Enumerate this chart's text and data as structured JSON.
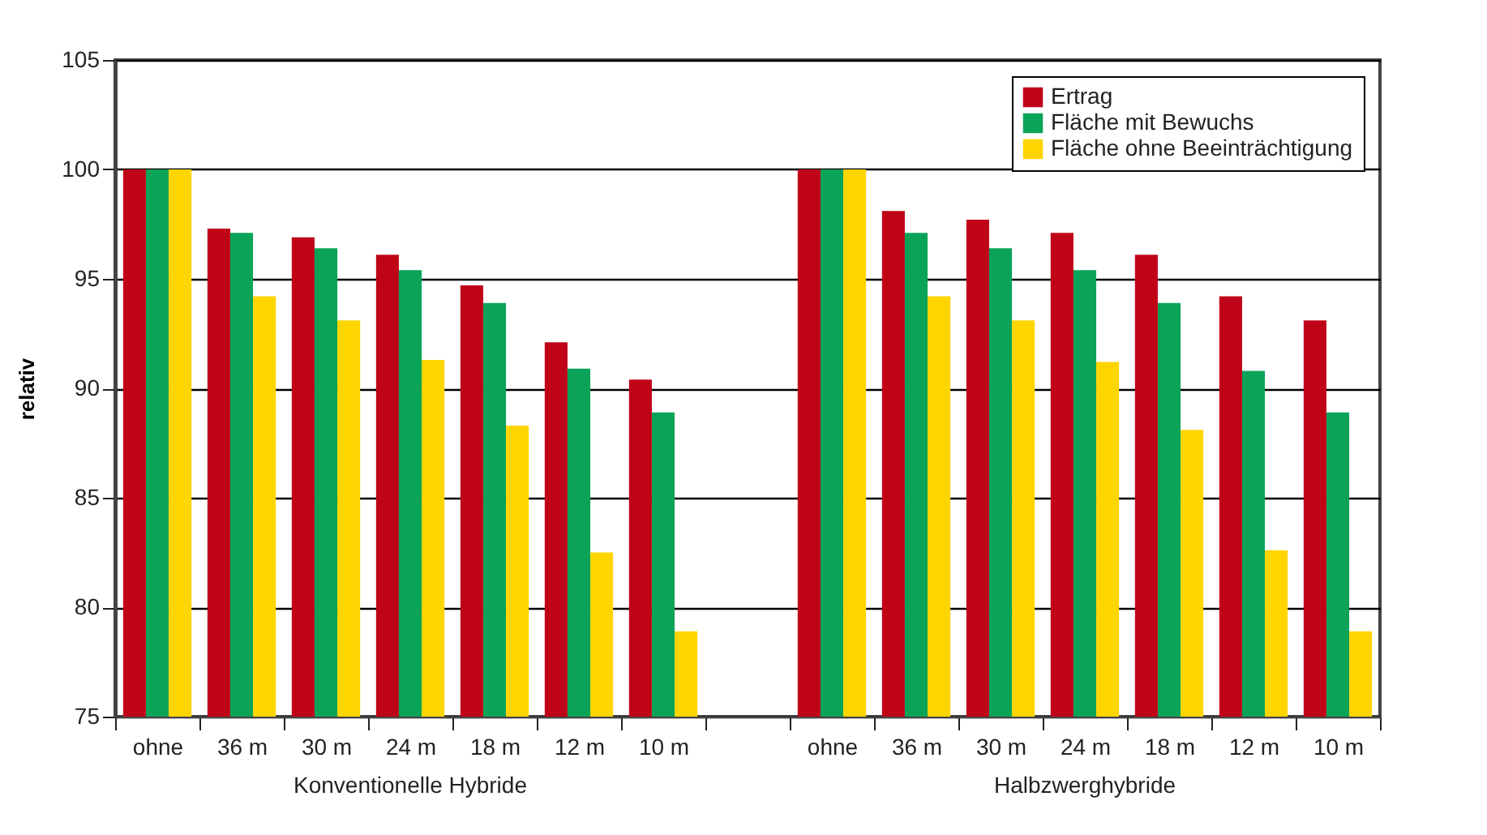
{
  "chart_data": {
    "type": "bar",
    "ylabel": "relativ",
    "categories": [
      "ohne",
      "36 m",
      "30 m",
      "24 m",
      "18 m",
      "12 m",
      "10 m",
      null,
      "ohne",
      "36 m",
      "30 m",
      "24 m",
      "18 m",
      "12 m",
      "10 m"
    ],
    "series": [
      {
        "name": "Ertrag",
        "color": "#c00418",
        "values": [
          100,
          97.3,
          96.9,
          96.1,
          94.7,
          92.1,
          90.4,
          null,
          100,
          98.1,
          97.7,
          97.1,
          96.1,
          94.2,
          93.1
        ]
      },
      {
        "name": "Fläche mit Bewuchs",
        "color": "#0aa358",
        "values": [
          100,
          97.1,
          96.4,
          95.4,
          93.9,
          90.9,
          88.9,
          null,
          100,
          97.1,
          96.4,
          95.4,
          93.9,
          90.8,
          88.9
        ]
      },
      {
        "name": "Fläche ohne Beeinträchtigung",
        "color": "#ffd500",
        "values": [
          100,
          94.2,
          93.1,
          91.3,
          88.3,
          82.5,
          78.9,
          null,
          100,
          94.2,
          93.1,
          91.2,
          88.1,
          82.6,
          78.9
        ]
      }
    ],
    "annotations": [
      "Konventionelle Hybride",
      "Halbzwerghybride"
    ],
    "ylim": [
      75,
      105
    ],
    "yticks": [
      75,
      80,
      85,
      90,
      95,
      100,
      105
    ],
    "grid": "y",
    "legend": "top right"
  }
}
